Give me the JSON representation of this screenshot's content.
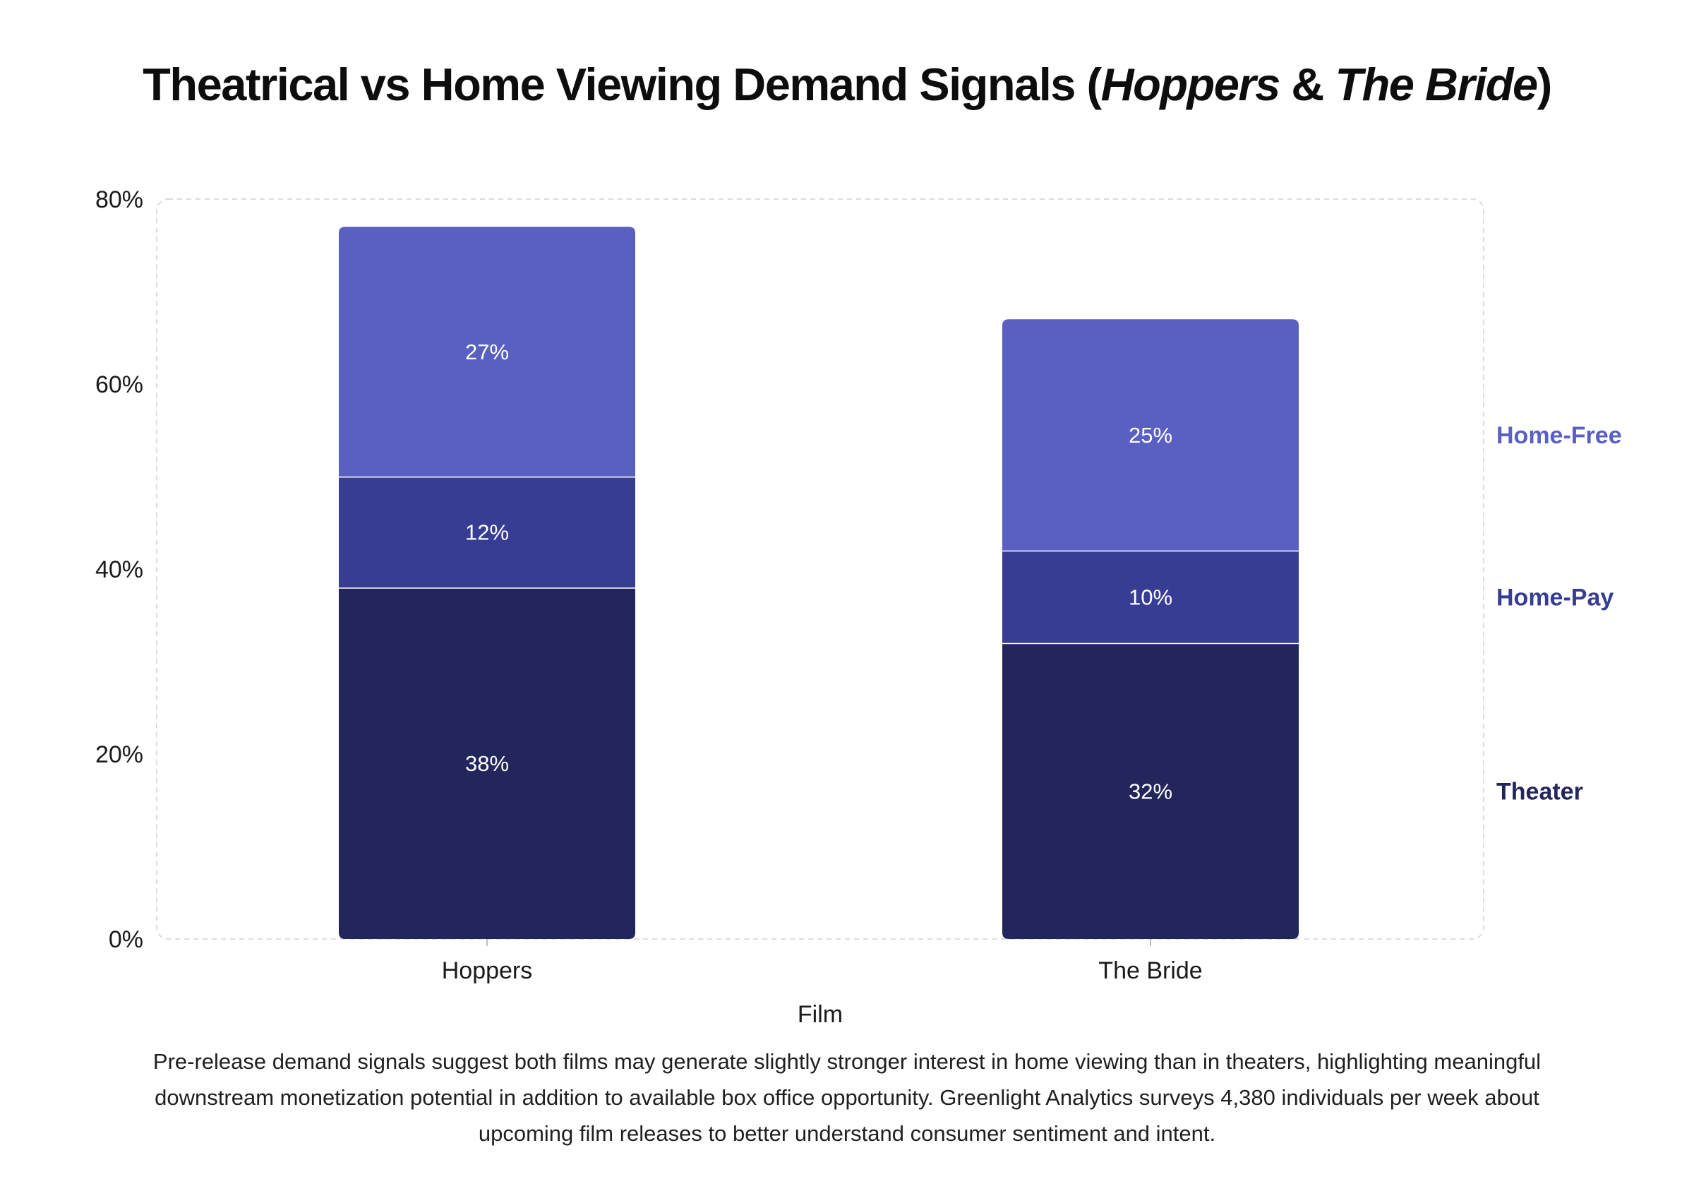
{
  "chart_data": {
    "type": "stacked-bar",
    "title": {
      "prefix": "Theatrical vs Home Viewing Demand Signals (",
      "film1": "Hoppers",
      "amp": " & ",
      "film2": "The Bride",
      "suffix": ")"
    },
    "xlabel": "Film",
    "ylabel": "",
    "ylim": [
      0,
      80
    ],
    "yticks": [
      0,
      20,
      40,
      60,
      80
    ],
    "ytick_labels": [
      "0%",
      "20%",
      "40%",
      "60%",
      "80%"
    ],
    "categories": [
      "Hoppers",
      "The Bride"
    ],
    "series": [
      {
        "name": "Theater",
        "values": [
          38,
          32
        ],
        "labels": [
          "38%",
          "32%"
        ],
        "color": "#23265b"
      },
      {
        "name": "Home-Pay",
        "values": [
          12,
          10
        ],
        "labels": [
          "12%",
          "10%"
        ],
        "color": "#383d94"
      },
      {
        "name": "Home-Free",
        "values": [
          27,
          25
        ],
        "labels": [
          "27%",
          "25%"
        ],
        "color": "#5960c2"
      }
    ],
    "legend_position": "right, aligned with segments",
    "grid": false
  },
  "caption": "Pre-release demand signals suggest both films may generate slightly stronger interest in home viewing than in theaters, highlighting meaningful downstream monetization potential in addition to available box office opportunity. Greenlight Analytics surveys 4,380 individuals per week about upcoming film releases to better understand consumer sentiment and intent."
}
